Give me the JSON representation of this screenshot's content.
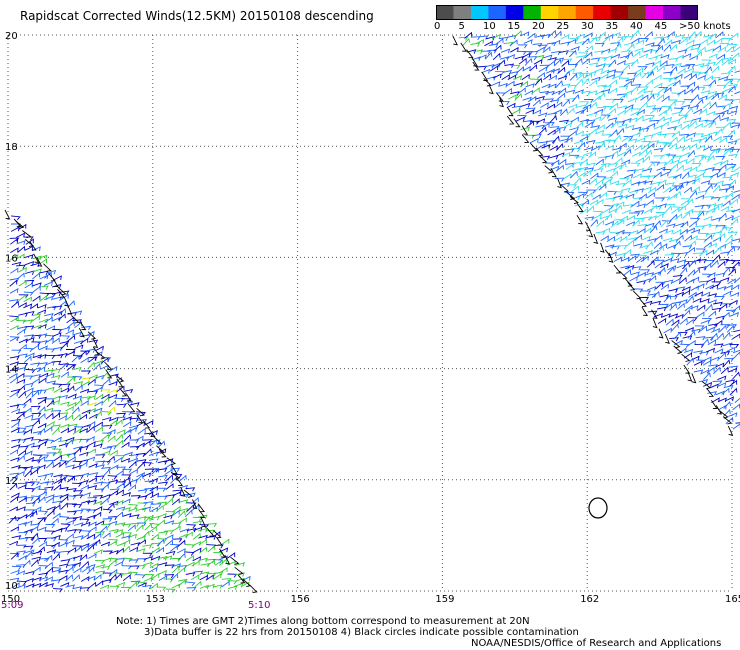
{
  "title": "Rapidscat Corrected Winds(12.5KM) 20150108 descending",
  "legend": {
    "colors": [
      "#4d4d4d",
      "#7f7f7f",
      "#00c8ff",
      "#1e64ff",
      "#0000e6",
      "#00b400",
      "#ffd200",
      "#ffa500",
      "#ff5a00",
      "#e60000",
      "#a00000",
      "#7a3c1e",
      "#e600e6",
      "#8c00c8",
      "#3c007a"
    ],
    "labels": [
      "0",
      "5",
      "10",
      "15",
      "20",
      "25",
      "30",
      "35",
      "40",
      "45",
      ">50 knots"
    ]
  },
  "axes": {
    "lat_labels": [
      "20",
      "18",
      "16",
      "14",
      "12",
      "10"
    ],
    "lon_labels": [
      "150",
      "153",
      "156",
      "159",
      "162",
      "165"
    ]
  },
  "times": {
    "left": "5:09",
    "right": "5:10"
  },
  "notes": {
    "line1": "Note: 1) Times are GMT 2)Times along bottom correspond to measurement at 20N",
    "line2": "3)Data buffer is 22 hrs from 20150108 4) Black circles indicate possible contamination",
    "line3": "NOAA/NESDIS/Office of Research and Applications"
  },
  "colors": {
    "wind_cyan": "#33ddee",
    "wind_blue": "#1e64ff",
    "wind_navy": "#0000c8",
    "wind_green": "#33cc33",
    "wind_yellow": "#e6e600",
    "rain_flag": "#000000",
    "time_label": "#800080"
  }
}
